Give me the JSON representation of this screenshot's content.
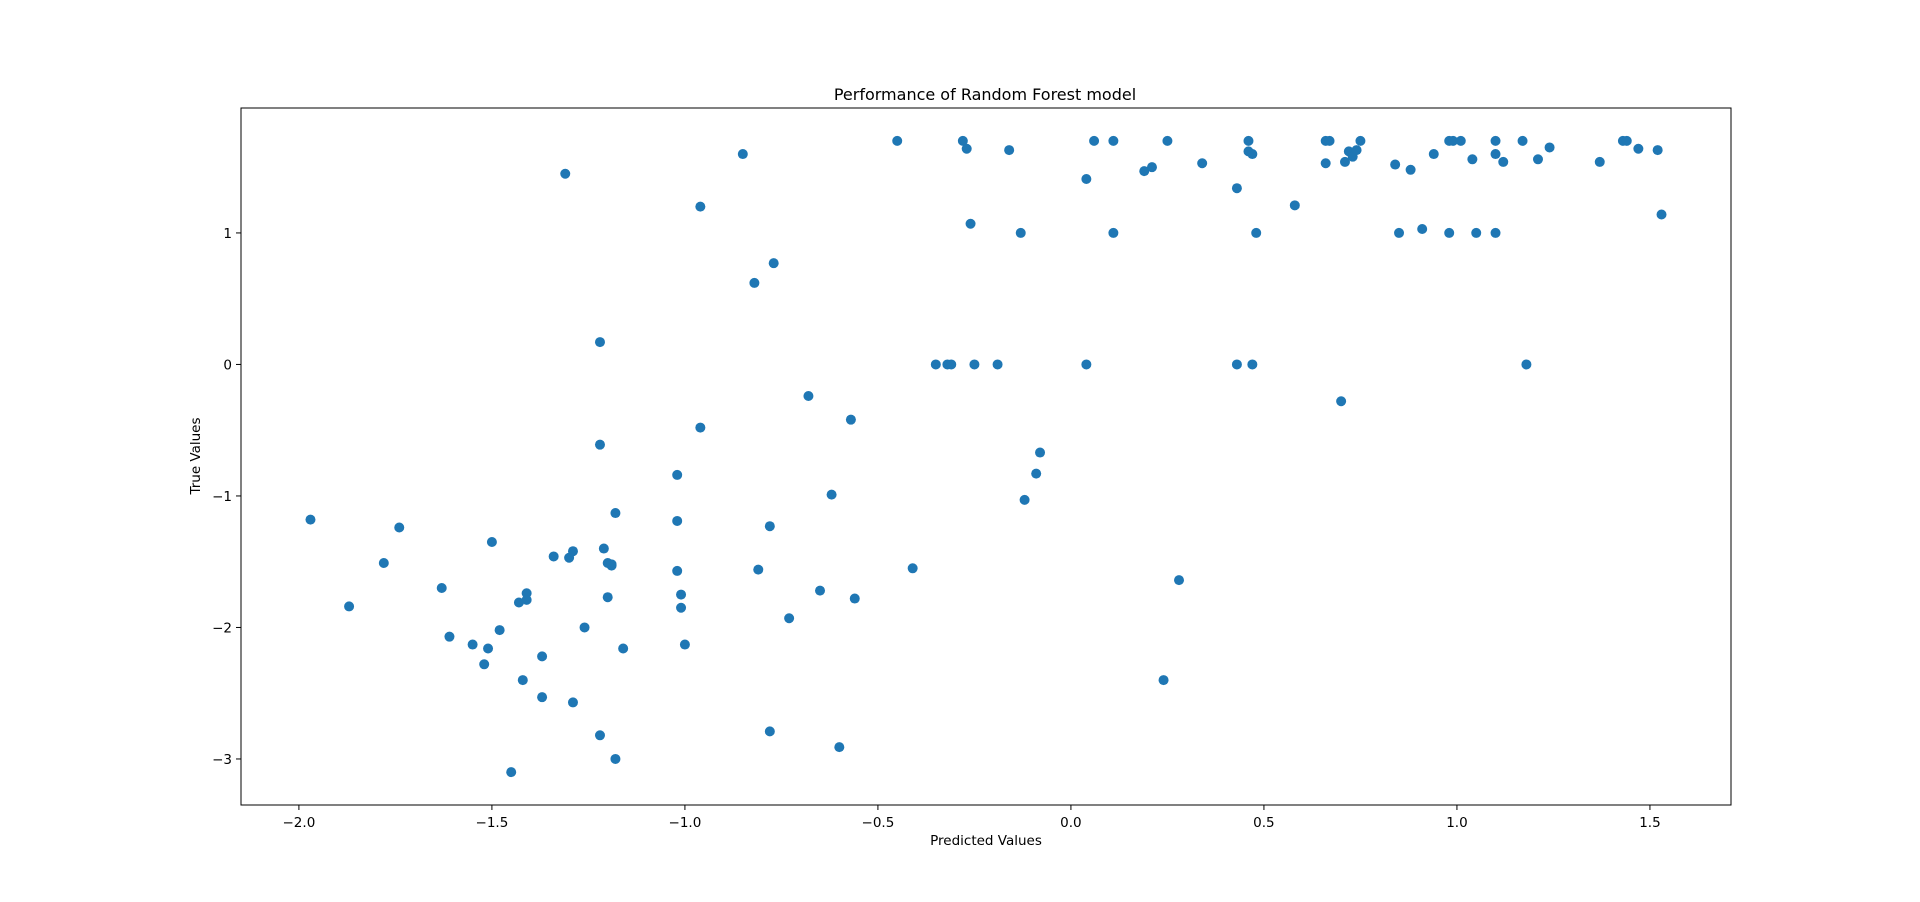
{
  "chart_data": {
    "type": "scatter",
    "title": "Performance of Random Forest model",
    "xlabel": "Predicted Values",
    "ylabel": "True Values",
    "xlim": [
      -2.15,
      1.71
    ],
    "ylim": [
      -3.35,
      1.95
    ],
    "xticks": [
      -2.0,
      -1.5,
      -1.0,
      -0.5,
      0.0,
      0.5,
      1.0,
      1.5
    ],
    "xtick_labels": [
      "−2.0",
      "−1.5",
      "−1.0",
      "−0.5",
      "0.0",
      "0.5",
      "1.0",
      "1.5"
    ],
    "yticks": [
      -3,
      -2,
      -1,
      0,
      1
    ],
    "ytick_labels": [
      "−3",
      "−2",
      "−1",
      "0",
      "1"
    ],
    "grid": false,
    "marker_color": "#1f77b4",
    "series": [
      {
        "x": [
          -1.97,
          -1.87,
          -1.78,
          -1.74,
          -1.63,
          -1.61,
          -1.55,
          -1.52,
          -1.51,
          -1.5,
          -1.48,
          -1.45,
          -1.43,
          -1.42,
          -1.41,
          -1.41,
          -1.37,
          -1.37,
          -1.34,
          -1.31,
          -1.3,
          -1.29,
          -1.29,
          -1.26,
          -1.22,
          -1.22,
          -1.22,
          -1.21,
          -1.2,
          -1.2,
          -1.19,
          -1.19,
          -1.18,
          -1.18,
          -1.16,
          -1.02,
          -1.02,
          -1.02,
          -1.01,
          -1.01,
          -1.0,
          -0.96,
          -0.96,
          -0.85,
          -0.82,
          -0.81,
          -0.78,
          -0.78,
          -0.77,
          -0.73,
          -0.68,
          -0.65,
          -0.62,
          -0.6,
          -0.57,
          -0.56,
          -0.45,
          -0.41,
          -0.35,
          -0.32,
          -0.31,
          -0.28,
          -0.27,
          -0.26,
          -0.25,
          -0.19,
          -0.16,
          -0.13,
          -0.12,
          -0.09,
          -0.08,
          0.04,
          0.04,
          0.06,
          0.11,
          0.11,
          0.19,
          0.21,
          0.24,
          0.25,
          0.28,
          0.34,
          0.43,
          0.43,
          0.46,
          0.46,
          0.47,
          0.47,
          0.48,
          0.58,
          0.66,
          0.66,
          0.67,
          0.7,
          0.71,
          0.72,
          0.73,
          0.74,
          0.75,
          0.84,
          0.85,
          0.88,
          0.91,
          0.94,
          0.98,
          0.98,
          0.99,
          1.01,
          1.04,
          1.05,
          1.1,
          1.1,
          1.1,
          1.12,
          1.17,
          1.18,
          1.21,
          1.24,
          1.37,
          1.43,
          1.44,
          1.47,
          1.52,
          1.53
        ],
        "y": [
          -1.18,
          -1.84,
          -1.51,
          -1.24,
          -1.7,
          -2.07,
          -2.13,
          -2.28,
          -2.16,
          -1.35,
          -2.02,
          -3.1,
          -1.81,
          -2.4,
          -1.74,
          -1.79,
          -2.22,
          -2.53,
          -1.46,
          1.45,
          -1.47,
          -1.42,
          -2.57,
          -2.0,
          -2.82,
          0.17,
          -0.61,
          -1.4,
          -1.51,
          -1.77,
          -1.53,
          -1.52,
          -1.13,
          -3.0,
          -2.16,
          -1.57,
          -1.19,
          -0.84,
          -1.75,
          -1.85,
          -2.13,
          -0.48,
          1.2,
          1.6,
          0.62,
          -1.56,
          -2.79,
          -1.23,
          0.77,
          -1.93,
          -0.24,
          -1.72,
          -0.99,
          -2.91,
          -0.42,
          -1.78,
          1.7,
          -1.55,
          0.0,
          0.0,
          0.0,
          1.7,
          1.64,
          1.07,
          0.0,
          0.0,
          1.63,
          1.0,
          -1.03,
          -0.83,
          -0.67,
          1.41,
          0.0,
          1.7,
          1.7,
          1.0,
          1.47,
          1.5,
          -2.4,
          1.7,
          -1.64,
          1.53,
          1.34,
          0.0,
          1.7,
          1.62,
          0.0,
          1.6,
          1.0,
          1.21,
          1.53,
          1.7,
          1.7,
          -0.28,
          1.54,
          1.62,
          1.58,
          1.63,
          1.7,
          1.52,
          1.0,
          1.48,
          1.03,
          1.6,
          1.7,
          1.0,
          1.7,
          1.7,
          1.56,
          1.0,
          1.7,
          1.6,
          1.0,
          1.54,
          1.7,
          0.0,
          1.56,
          1.65,
          1.54,
          1.7,
          1.7,
          1.64,
          1.63,
          1.14
        ]
      }
    ]
  }
}
